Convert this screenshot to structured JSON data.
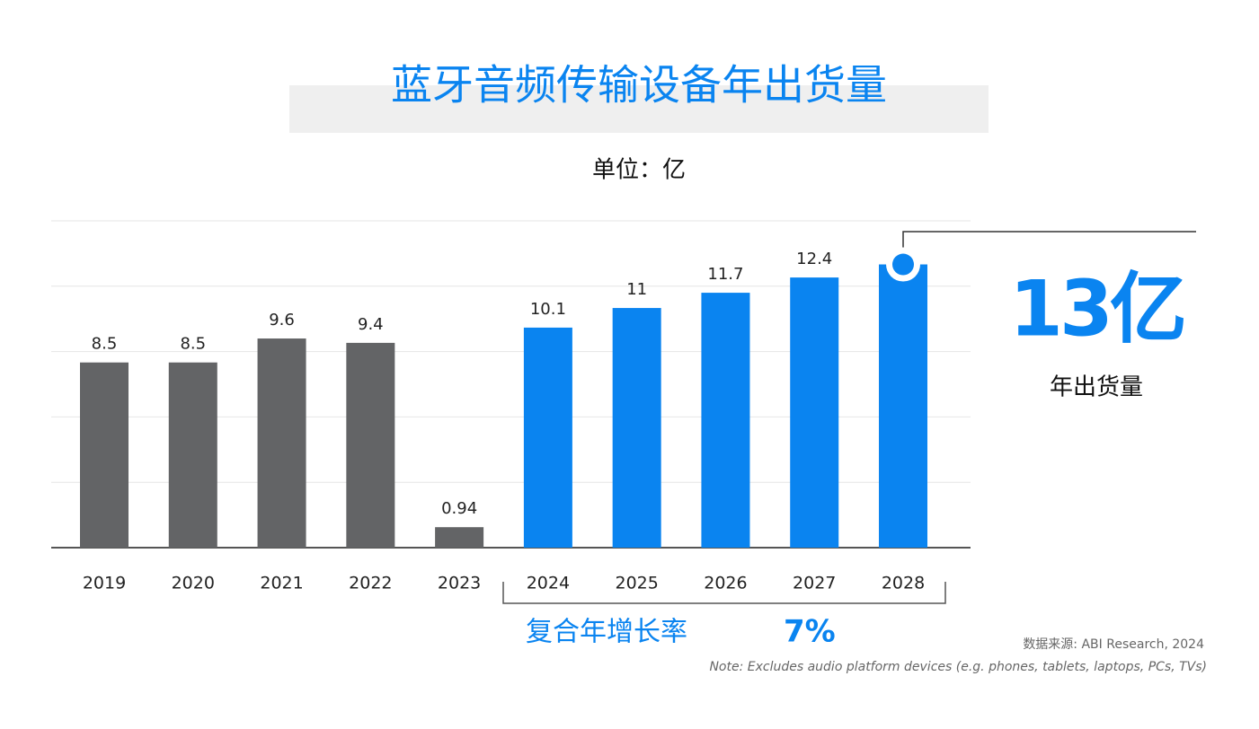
{
  "chart_data": {
    "type": "bar",
    "title": "蓝牙音频传输设备年出货量",
    "subtitle": "单位：亿",
    "categories": [
      "2019",
      "2020",
      "2021",
      "2022",
      "2023",
      "2024",
      "2025",
      "2026",
      "2027",
      "2028"
    ],
    "values": [
      8.5,
      8.5,
      9.6,
      9.4,
      0.94,
      10.1,
      11,
      11.7,
      12.4,
      13
    ],
    "colors": [
      "#636466",
      "#636466",
      "#636466",
      "#636466",
      "#636466",
      "#0a84f0",
      "#0a84f0",
      "#0a84f0",
      "#0a84f0",
      "#0a84f0"
    ],
    "ylim": [
      0,
      15
    ],
    "yticks": [
      0,
      3,
      6,
      9,
      12,
      15
    ],
    "grid": true,
    "callout": {
      "value": "13亿",
      "label": "年出货量"
    },
    "cagr": {
      "label": "复合年增长率",
      "value": "7%"
    },
    "source": "数据来源: ABI Research, 2024",
    "note": "Note: Excludes audio platform devices (e.g. phones, tablets, laptops, PCs, TVs)"
  }
}
